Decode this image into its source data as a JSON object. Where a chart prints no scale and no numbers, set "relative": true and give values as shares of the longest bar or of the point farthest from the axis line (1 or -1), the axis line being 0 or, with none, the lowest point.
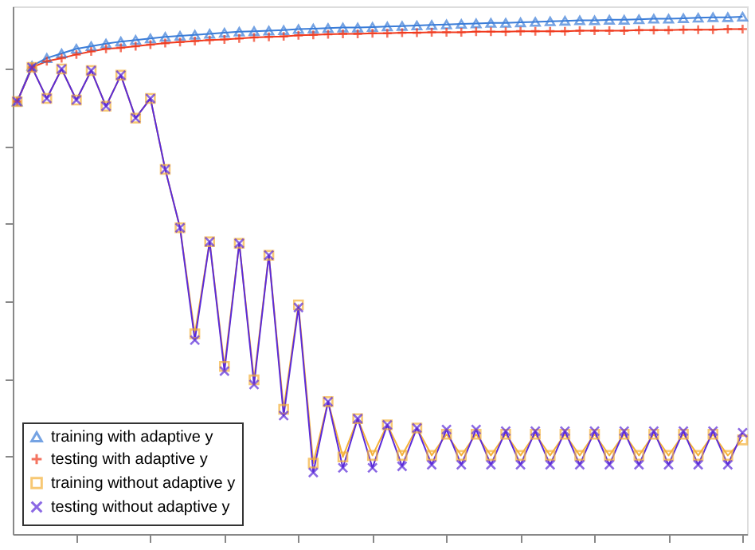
{
  "chart_data": {
    "type": "line",
    "relative": true,
    "tick_labels": false,
    "legend": "bottom left",
    "grid": false,
    "categories": [
      null,
      null,
      null,
      null,
      null,
      null,
      null,
      null,
      null,
      null,
      null,
      null,
      null,
      null,
      null,
      null,
      null,
      null,
      null,
      null,
      null,
      null,
      null,
      null,
      null,
      null,
      null,
      null,
      null,
      null,
      null,
      null,
      null,
      null,
      null,
      null,
      null,
      null,
      null,
      null,
      null,
      null,
      null,
      null,
      null,
      null,
      null,
      null,
      null,
      null
    ],
    "series": [
      {
        "name": "training with adaptive y",
        "color": "#3b7dd8",
        "marker": "triangle",
        "values": [
          0.836,
          0.905,
          0.92,
          0.929,
          0.938,
          0.943,
          0.948,
          0.952,
          0.955,
          0.958,
          0.961,
          0.963,
          0.965,
          0.967,
          0.969,
          0.971,
          0.972,
          0.973,
          0.974,
          0.976,
          0.977,
          0.978,
          0.979,
          0.979,
          0.98,
          0.981,
          0.982,
          0.983,
          0.984,
          0.985,
          0.986,
          0.987,
          0.988,
          0.988,
          0.989,
          0.99,
          0.991,
          0.992,
          0.993,
          0.993,
          0.994,
          0.994,
          0.995,
          0.996,
          0.996,
          0.997,
          0.998,
          0.999,
          0.999,
          1.0
        ]
      },
      {
        "name": "testing with adaptive y",
        "color": "#f03a1e",
        "marker": "plus",
        "values": [
          0.836,
          0.902,
          0.914,
          0.92,
          0.927,
          0.933,
          0.938,
          0.94,
          0.943,
          0.946,
          0.949,
          0.951,
          0.953,
          0.955,
          0.956,
          0.958,
          0.96,
          0.961,
          0.962,
          0.964,
          0.965,
          0.966,
          0.967,
          0.967,
          0.968,
          0.968,
          0.969,
          0.969,
          0.97,
          0.97,
          0.97,
          0.971,
          0.971,
          0.971,
          0.972,
          0.972,
          0.972,
          0.972,
          0.973,
          0.973,
          0.973,
          0.973,
          0.974,
          0.974,
          0.974,
          0.975,
          0.975,
          0.975,
          0.976,
          0.976
        ]
      },
      {
        "name": "training without adaptive y",
        "color": "#f4b13a",
        "marker": "square",
        "values": [
          0.836,
          0.902,
          0.842,
          0.899,
          0.839,
          0.896,
          0.827,
          0.887,
          0.804,
          0.842,
          0.705,
          0.592,
          0.387,
          0.565,
          0.324,
          0.562,
          0.298,
          0.539,
          0.241,
          0.443,
          0.137,
          0.256,
          0.149,
          0.223,
          0.152,
          0.211,
          0.152,
          0.205,
          0.152,
          0.193,
          0.152,
          0.193,
          0.152,
          0.193,
          0.152,
          0.193,
          0.152,
          0.193,
          0.152,
          0.193,
          0.152,
          0.193,
          0.152,
          0.193,
          0.152,
          0.193,
          0.152,
          0.193,
          0.152,
          0.182
        ]
      },
      {
        "name": "testing without adaptive y",
        "color": "#5b2bd9",
        "marker": "x",
        "values": [
          0.836,
          0.902,
          0.842,
          0.899,
          0.839,
          0.896,
          0.827,
          0.887,
          0.804,
          0.842,
          0.705,
          0.592,
          0.375,
          0.565,
          0.315,
          0.562,
          0.289,
          0.539,
          0.229,
          0.438,
          0.119,
          0.256,
          0.128,
          0.223,
          0.128,
          0.211,
          0.131,
          0.205,
          0.134,
          0.202,
          0.134,
          0.202,
          0.134,
          0.199,
          0.134,
          0.199,
          0.134,
          0.199,
          0.134,
          0.199,
          0.134,
          0.199,
          0.134,
          0.199,
          0.134,
          0.199,
          0.134,
          0.199,
          0.134,
          0.196
        ]
      }
    ]
  }
}
